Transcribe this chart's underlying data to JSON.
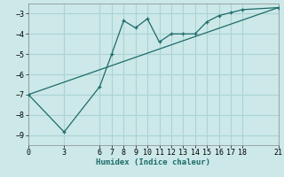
{
  "xlabel": "Humidex (Indice chaleur)",
  "background_color": "#cce8e8",
  "grid_color": "#aad4d4",
  "line_color": "#1e6b6b",
  "line1_x": [
    0,
    3,
    6,
    7,
    8,
    9,
    10,
    11,
    12,
    13,
    14,
    15,
    16,
    17,
    18,
    21
  ],
  "line1_y": [
    -7.0,
    -8.85,
    -6.6,
    -5.0,
    -3.35,
    -3.7,
    -3.25,
    -4.4,
    -4.0,
    -4.0,
    -4.0,
    -3.4,
    -3.1,
    -2.95,
    -2.8,
    -2.7
  ],
  "line2_x": [
    0,
    21
  ],
  "line2_y": [
    -7.0,
    -2.7
  ],
  "xlim": [
    0,
    21
  ],
  "ylim": [
    -9.5,
    -2.5
  ],
  "xticks": [
    0,
    3,
    6,
    7,
    8,
    9,
    10,
    11,
    12,
    13,
    14,
    15,
    16,
    17,
    18,
    21
  ],
  "yticks": [
    -9,
    -8,
    -7,
    -6,
    -5,
    -4,
    -3
  ],
  "xlabel_fontsize": 6.5,
  "tick_fontsize": 6.0
}
